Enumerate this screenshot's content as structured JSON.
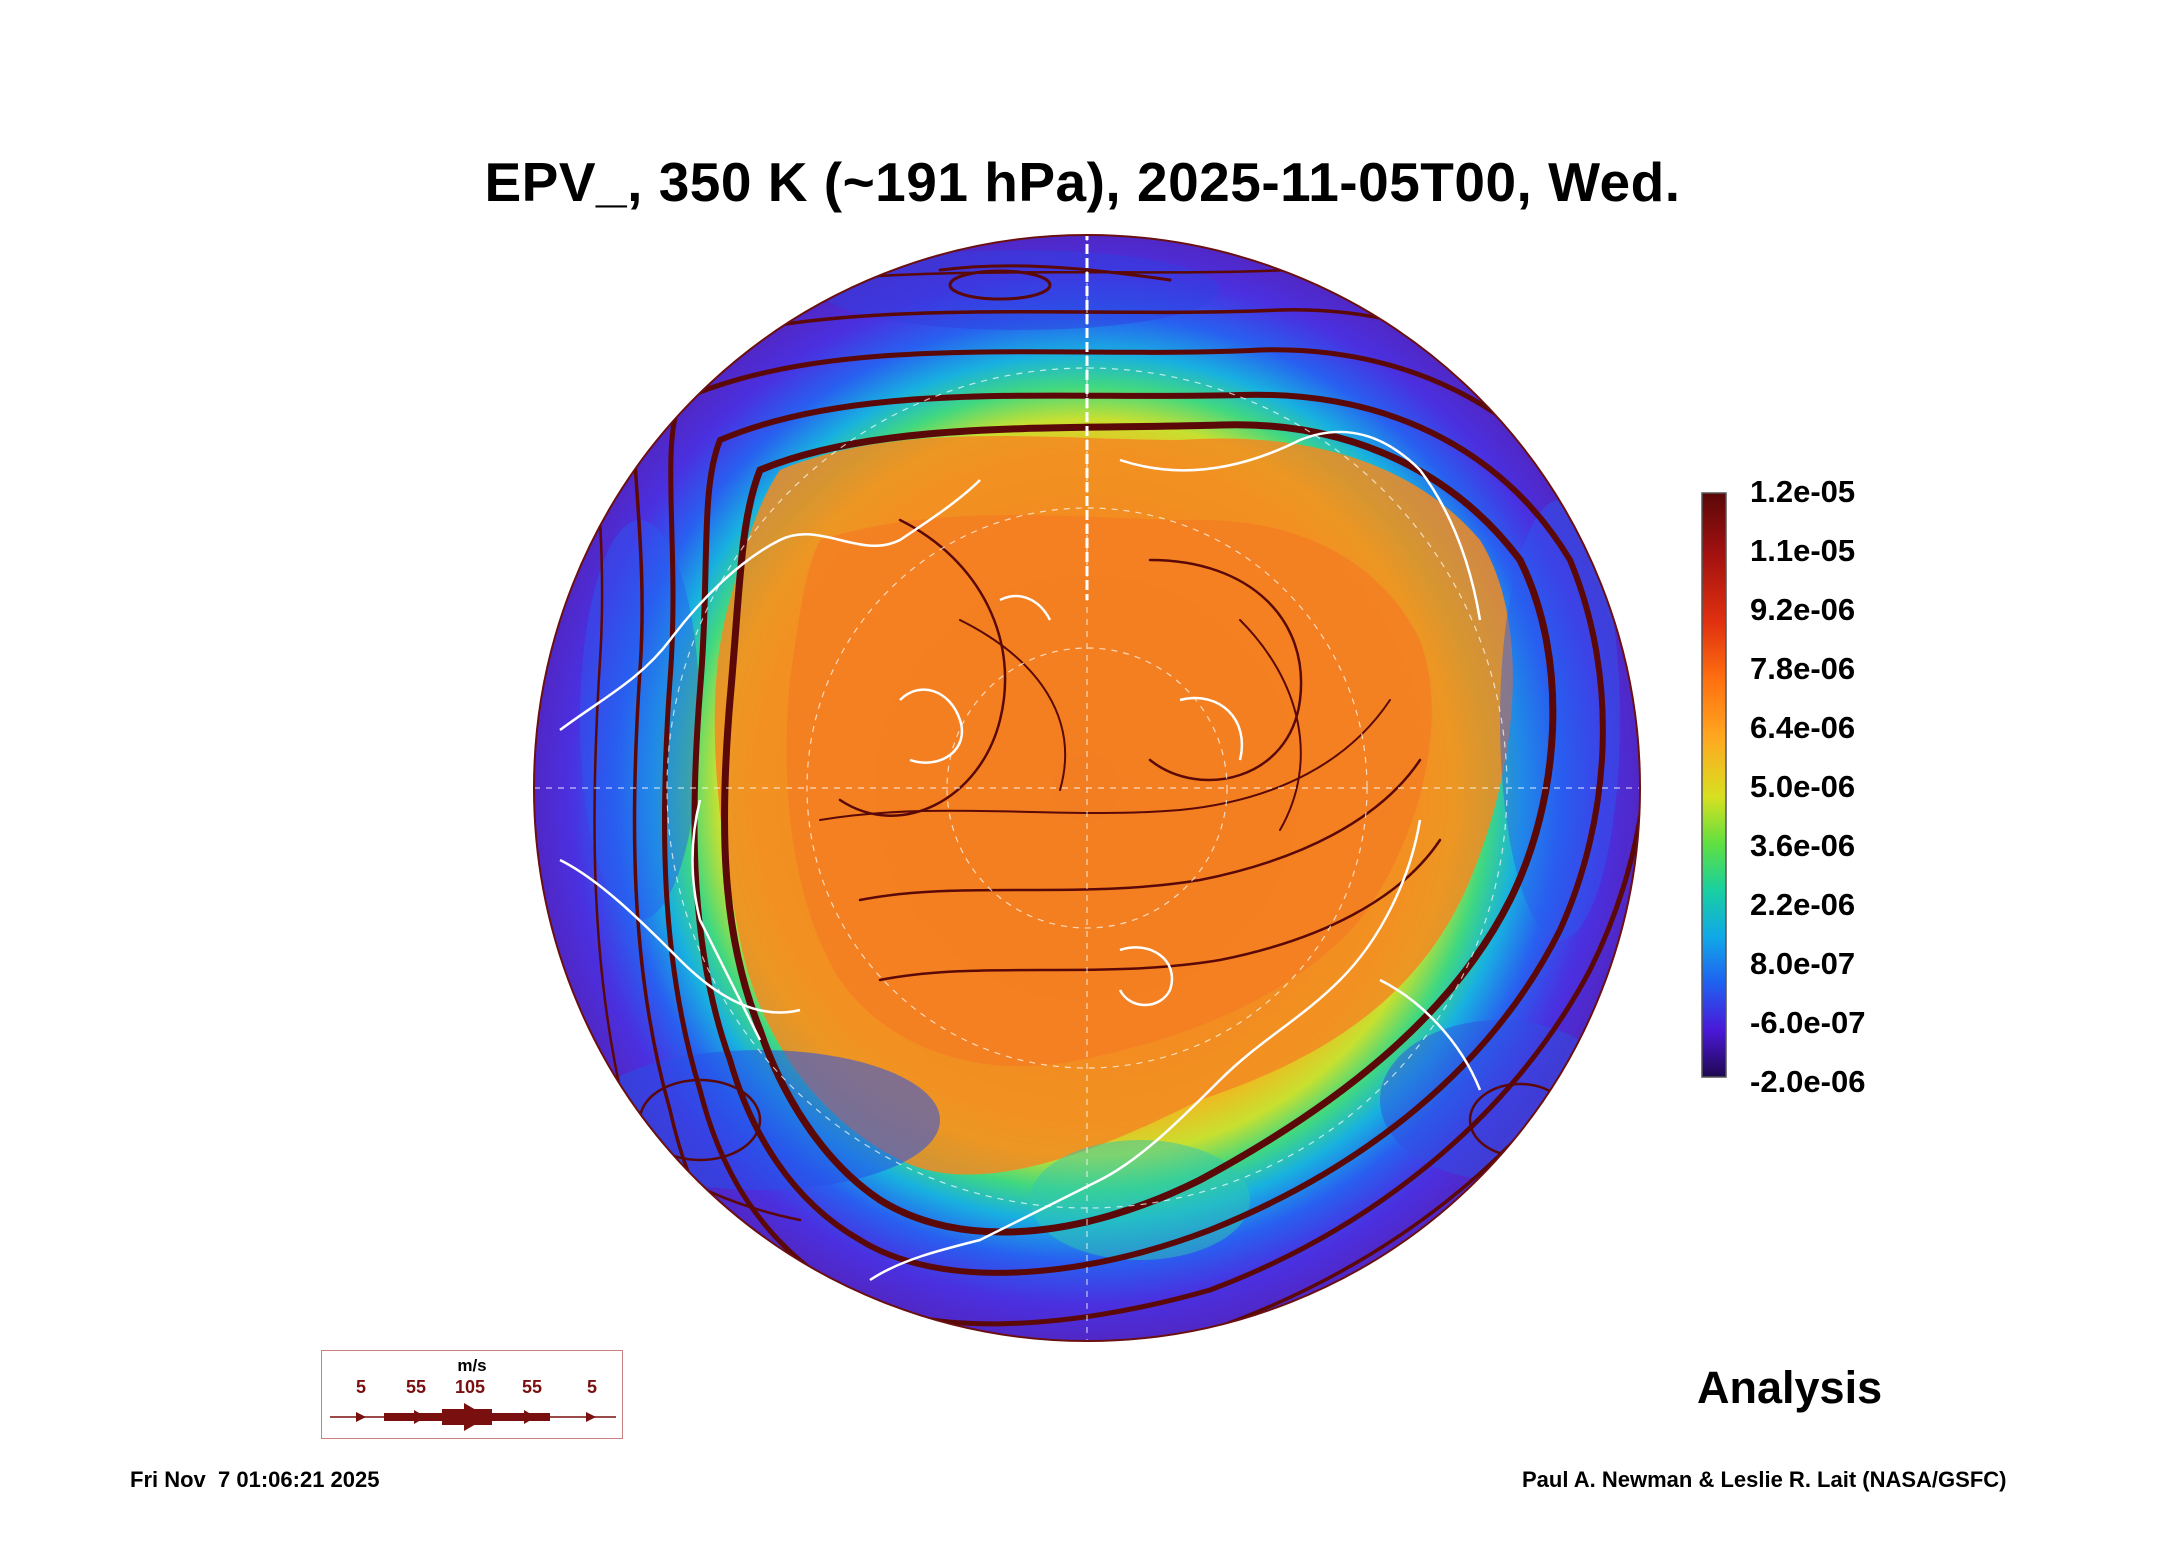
{
  "title": "EPV_, 350 K (~191 hPa), 2025-11-05T00, Wed.",
  "colorbar": {
    "labels": [
      "1.2e-05",
      "1.1e-05",
      "9.2e-06",
      "7.8e-06",
      "6.4e-06",
      "5.0e-06",
      "3.6e-06",
      "2.2e-06",
      "8.0e-07",
      "-6.0e-07",
      "-2.0e-06"
    ],
    "colors": [
      "#6a0d0d",
      "#b01010",
      "#e02a10",
      "#ff7a10",
      "#ffb020",
      "#d8e020",
      "#60e040",
      "#10c8c8",
      "#1078f0",
      "#5020e8",
      "#2a0a70"
    ]
  },
  "legend": {
    "unit": "m/s",
    "speeds": [
      "5",
      "55",
      "105",
      "55",
      "5"
    ]
  },
  "analysis_label": "Analysis",
  "timestamp": "Fri Nov  7 01:06:21 2025",
  "credit": "Paul A. Newman & Leslie R. Lait (NASA/GSFC)",
  "streamline_color": "#5a0808",
  "coastline_color": "#ffffff"
}
